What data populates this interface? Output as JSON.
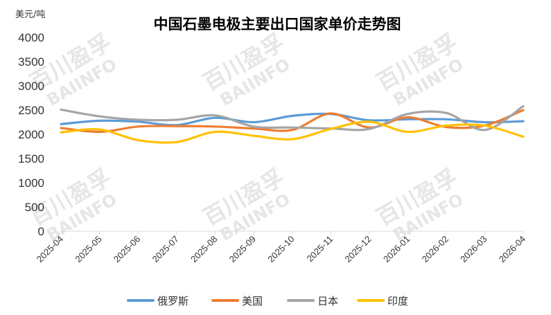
{
  "chart_data": {
    "type": "line",
    "title": "中国石墨电极主要出口国家单价走势图",
    "ylabel": "美元/吨",
    "xlabel": "",
    "ylim": [
      0,
      4000
    ],
    "yticks": [
      0,
      500,
      1000,
      1500,
      2000,
      2500,
      3000,
      3500,
      4000
    ],
    "categories": [
      "2025-04",
      "2025-05",
      "2025-06",
      "2025-07",
      "2025-08",
      "2025-09",
      "2025-10",
      "2025-11",
      "2025-12",
      "2026-01",
      "2026-02",
      "2026-03",
      "2026-04"
    ],
    "grid": false,
    "legend_position": "bottom",
    "series": [
      {
        "name": "俄罗斯",
        "color": "#5b9bd5",
        "values": [
          2210,
          2280,
          2260,
          2190,
          2340,
          2250,
          2380,
          2420,
          2290,
          2310,
          2310,
          2250,
          2270
        ]
      },
      {
        "name": "美国",
        "color": "#ed7d31",
        "values": [
          2130,
          2050,
          2160,
          2170,
          2160,
          2120,
          2090,
          2430,
          2140,
          2350,
          2150,
          2180,
          2500
        ]
      },
      {
        "name": "日本",
        "color": "#a5a5a5",
        "values": [
          2510,
          2370,
          2300,
          2300,
          2390,
          2160,
          2140,
          2120,
          2110,
          2420,
          2440,
          2090,
          2580
        ]
      },
      {
        "name": "印度",
        "color": "#ffc000",
        "values": [
          2040,
          2100,
          1880,
          1840,
          2050,
          1970,
          1900,
          2110,
          2260,
          2050,
          2180,
          2180,
          1950
        ]
      }
    ]
  },
  "watermark": {
    "cn": "百川盈孚",
    "en": "BAIINFO"
  }
}
